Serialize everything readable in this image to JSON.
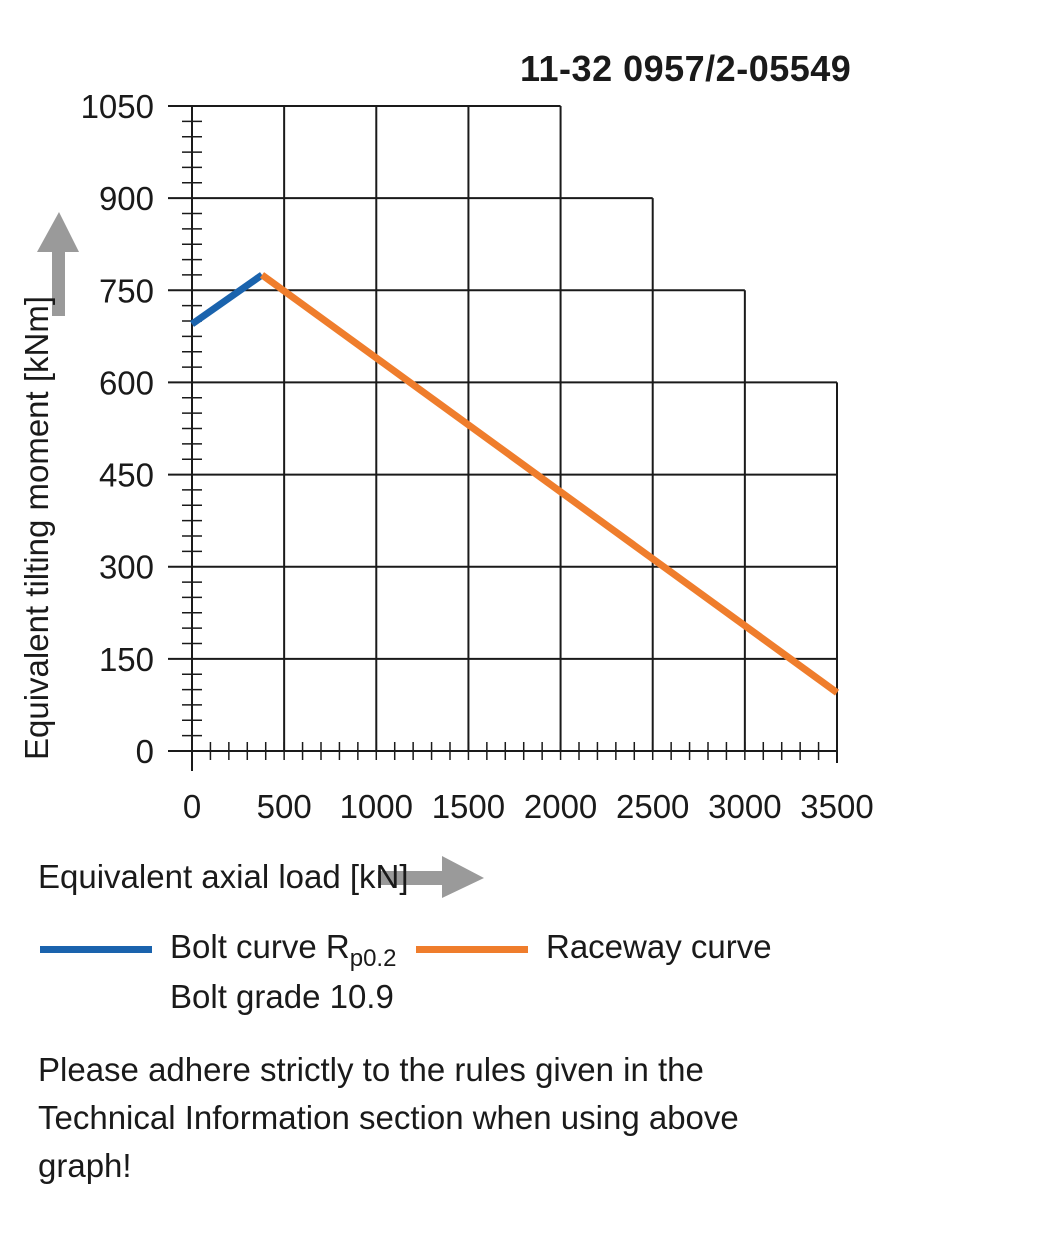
{
  "document_id": "11-32 0957/2-05549",
  "chart_data": {
    "type": "line",
    "xlabel": "Equivalent axial load [kN]",
    "ylabel": "Equivalent tilting moment [kNm]",
    "xlim": [
      0,
      3500
    ],
    "ylim": [
      0,
      1050
    ],
    "x_ticks": [
      0,
      500,
      1000,
      1500,
      2000,
      2500,
      3000,
      3500
    ],
    "y_ticks": [
      0,
      150,
      300,
      450,
      600,
      750,
      900,
      1050
    ],
    "x_tick_labels": [
      "0",
      "500",
      "1000",
      "1500",
      "2000",
      "2500",
      "3000",
      "3500"
    ],
    "y_tick_labels": [
      "0",
      "150",
      "300",
      "450",
      "600",
      "750",
      "900",
      "1050"
    ],
    "grid": true,
    "series": [
      {
        "name": "Bolt curve R p0.2",
        "color": "#1a63ad",
        "x": [
          0,
          380
        ],
        "y": [
          695,
          775
        ]
      },
      {
        "name": "Raceway curve",
        "color": "#ef7d2c",
        "x": [
          380,
          3500
        ],
        "y": [
          775,
          95
        ]
      }
    ]
  },
  "legend": {
    "bolt_label": "Bolt curve  R",
    "bolt_subscript": "p0.2",
    "bolt_grade": "Bolt grade 10.9",
    "raceway_label": "Raceway curve",
    "bolt_color": "#1a63ad",
    "raceway_color": "#ef7d2c",
    "arrow_color": "#9a9a9a"
  },
  "note": "Please adhere strictly to the rules given in the Technical Information section when using above graph!"
}
